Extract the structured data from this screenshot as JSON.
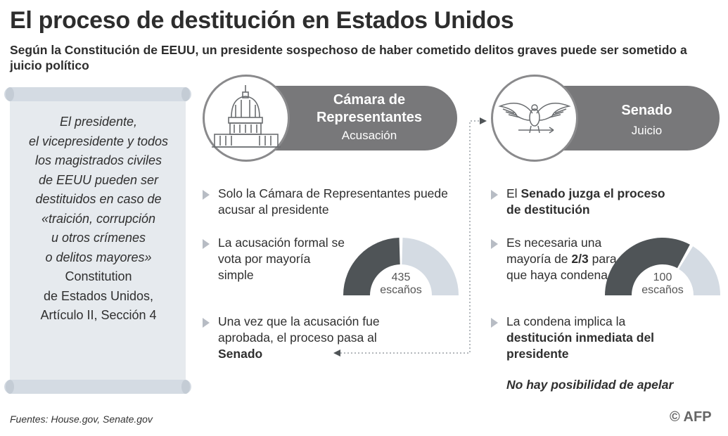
{
  "title": "El proceso de destitución en Estados Unidos",
  "subtitle": "Según la Constitución de EEUU, un presidente sospechoso de haber cometido delitos graves puede ser sometido a juicio político",
  "scroll": {
    "quote_lines": [
      "El presidente,",
      "el vicepresidente y todos",
      "los magistrados civiles",
      "de EEUU pueden ser",
      "destituidos en caso de",
      "«traición, corrupción",
      "u otros crímenes",
      "o delitos mayores»"
    ],
    "citation_lines": [
      "Constitution",
      "de Estados Unidos,",
      "Artículo II, Sección 4"
    ]
  },
  "house": {
    "title_line1": "Cámara de",
    "title_line2": "Representantes",
    "subtitle": "Acusación",
    "bullet1": "Solo la Cámara de Representantes puede acusar al presidente",
    "bullet2": "La acusación formal se vota por mayoría simple",
    "bullet3_prefix": "Una vez que la acusación fue aprobada, el proceso pasa al",
    "bullet3_bold": "Senado",
    "gauge": {
      "number": "435",
      "unit": "escaños",
      "fraction_dark": 0.5
    }
  },
  "senate": {
    "title": "Senado",
    "subtitle": "Juicio",
    "bullet1_prefix": "El",
    "bullet1_bold": "Senado juzga el proceso de destitución",
    "bullet2_prefix": "Es necesaria una mayoría de",
    "bullet2_bold": "2/3",
    "bullet2_suffix": "para que haya condena",
    "bullet3_prefix": "La condena implica la",
    "bullet3_bold": "destitución inmediata del presidente",
    "note": "No hay posibilidad de apelar",
    "gauge": {
      "number": "100",
      "unit": "escaños",
      "fraction_dark": 0.6667
    }
  },
  "footer": "Fuentes: House.gov, Senate.gov",
  "credit": "© AFP",
  "colors": {
    "dark": "#4f5457",
    "light": "#d4dbe3",
    "pill": "#78787a",
    "arrow": "#b7bcc4"
  }
}
